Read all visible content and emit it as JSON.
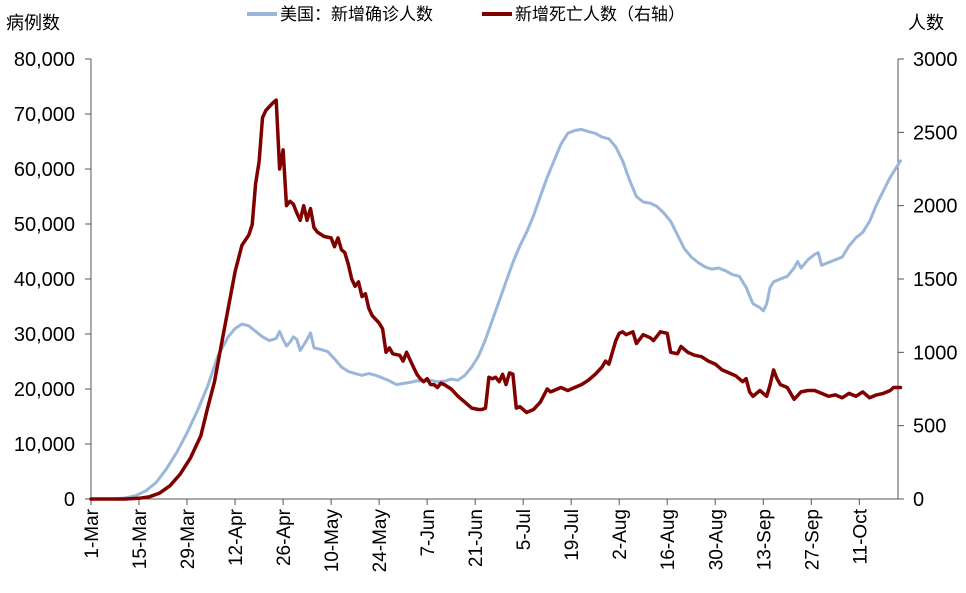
{
  "chart_data": {
    "type": "line",
    "left_unit": "病例数",
    "right_unit": "人数",
    "legend": {
      "position": "top",
      "items": [
        {
          "label": "美国：新增确诊人数",
          "color": "#9AB7DA"
        },
        {
          "label": "新增死亡人数（右轴）",
          "color": "#800000"
        }
      ]
    },
    "x_ticks": [
      "1-Mar",
      "15-Mar",
      "29-Mar",
      "12-Apr",
      "26-Apr",
      "10-May",
      "24-May",
      "7-Jun",
      "21-Jun",
      "5-Jul",
      "19-Jul",
      "2-Aug",
      "16-Aug",
      "30-Aug",
      "13-Sep",
      "27-Sep",
      "11-Oct"
    ],
    "y_left": {
      "min": 0,
      "max": 80000,
      "step": 10000,
      "tick_labels": [
        "0",
        "10,000",
        "20,000",
        "30,000",
        "40,000",
        "50,000",
        "60,000",
        "70,000",
        "80,000"
      ]
    },
    "y_right": {
      "min": 0,
      "max": 3000,
      "step": 500,
      "tick_labels": [
        "0",
        "500",
        "1000",
        "1500",
        "2000",
        "2500",
        "3000"
      ]
    },
    "series": [
      {
        "name": "美国：新增确诊人数",
        "axis": "left",
        "color": "#9AB7DA",
        "points": [
          [
            0,
            0
          ],
          [
            7,
            0
          ],
          [
            10,
            200
          ],
          [
            13,
            600
          ],
          [
            16,
            1500
          ],
          [
            19,
            3000
          ],
          [
            22,
            5500
          ],
          [
            25,
            8500
          ],
          [
            28,
            12000
          ],
          [
            31,
            16000
          ],
          [
            34,
            20500
          ],
          [
            37,
            26000
          ],
          [
            40,
            29500
          ],
          [
            42,
            31000
          ],
          [
            44,
            31800
          ],
          [
            46,
            31500
          ],
          [
            48,
            30500
          ],
          [
            50,
            29500
          ],
          [
            52,
            28800
          ],
          [
            54,
            29200
          ],
          [
            55,
            30500
          ],
          [
            56,
            29000
          ],
          [
            57,
            27800
          ],
          [
            58,
            28500
          ],
          [
            59,
            29500
          ],
          [
            60,
            29000
          ],
          [
            61,
            27000
          ],
          [
            62,
            28000
          ],
          [
            63,
            29000
          ],
          [
            64,
            30200
          ],
          [
            65,
            27500
          ],
          [
            67,
            27200
          ],
          [
            69,
            26800
          ],
          [
            71,
            25500
          ],
          [
            73,
            24000
          ],
          [
            75,
            23200
          ],
          [
            77,
            22800
          ],
          [
            79,
            22500
          ],
          [
            81,
            22800
          ],
          [
            83,
            22500
          ],
          [
            85,
            22000
          ],
          [
            87,
            21500
          ],
          [
            89,
            20800
          ],
          [
            91,
            21000
          ],
          [
            93,
            21200
          ],
          [
            95,
            21500
          ],
          [
            97,
            21400
          ],
          [
            99,
            21600
          ],
          [
            101,
            21300
          ],
          [
            103,
            21400
          ],
          [
            105,
            21800
          ],
          [
            107,
            21600
          ],
          [
            109,
            22500
          ],
          [
            111,
            24000
          ],
          [
            113,
            26000
          ],
          [
            115,
            29000
          ],
          [
            117,
            32500
          ],
          [
            119,
            36000
          ],
          [
            121,
            39500
          ],
          [
            123,
            43000
          ],
          [
            125,
            46000
          ],
          [
            127,
            48500
          ],
          [
            129,
            51500
          ],
          [
            131,
            55000
          ],
          [
            133,
            58500
          ],
          [
            135,
            61500
          ],
          [
            137,
            64500
          ],
          [
            139,
            66500
          ],
          [
            141,
            67000
          ],
          [
            143,
            67200
          ],
          [
            145,
            66800
          ],
          [
            147,
            66500
          ],
          [
            149,
            65800
          ],
          [
            151,
            65500
          ],
          [
            153,
            64000
          ],
          [
            155,
            61500
          ],
          [
            157,
            58000
          ],
          [
            159,
            55000
          ],
          [
            161,
            54000
          ],
          [
            163,
            53800
          ],
          [
            165,
            53200
          ],
          [
            167,
            52000
          ],
          [
            169,
            50500
          ],
          [
            171,
            48000
          ],
          [
            173,
            45500
          ],
          [
            175,
            44000
          ],
          [
            177,
            43000
          ],
          [
            179,
            42200
          ],
          [
            181,
            41800
          ],
          [
            183,
            42000
          ],
          [
            185,
            41500
          ],
          [
            187,
            40800
          ],
          [
            189,
            40500
          ],
          [
            191,
            38500
          ],
          [
            193,
            35500
          ],
          [
            195,
            34800
          ],
          [
            196,
            34200
          ],
          [
            197,
            35500
          ],
          [
            198,
            38500
          ],
          [
            199,
            39500
          ],
          [
            201,
            40000
          ],
          [
            203,
            40500
          ],
          [
            205,
            42000
          ],
          [
            206,
            43200
          ],
          [
            207,
            42000
          ],
          [
            209,
            43500
          ],
          [
            211,
            44500
          ],
          [
            212,
            44800
          ],
          [
            213,
            42500
          ],
          [
            215,
            43000
          ],
          [
            217,
            43500
          ],
          [
            219,
            44000
          ],
          [
            221,
            46000
          ],
          [
            223,
            47500
          ],
          [
            225,
            48500
          ],
          [
            227,
            50500
          ],
          [
            229,
            53500
          ],
          [
            231,
            56000
          ],
          [
            233,
            58500
          ],
          [
            235,
            60500
          ],
          [
            236,
            61500
          ]
        ]
      },
      {
        "name": "新增死亡人数（右轴）",
        "axis": "right",
        "color": "#800000",
        "points": [
          [
            0,
            0
          ],
          [
            10,
            0
          ],
          [
            14,
            5
          ],
          [
            17,
            15
          ],
          [
            20,
            40
          ],
          [
            23,
            90
          ],
          [
            26,
            170
          ],
          [
            29,
            280
          ],
          [
            32,
            430
          ],
          [
            34,
            620
          ],
          [
            36,
            800
          ],
          [
            38,
            1050
          ],
          [
            40,
            1300
          ],
          [
            42,
            1550
          ],
          [
            44,
            1730
          ],
          [
            46,
            1800
          ],
          [
            47,
            1870
          ],
          [
            48,
            2150
          ],
          [
            49,
            2300
          ],
          [
            50,
            2600
          ],
          [
            51,
            2650
          ],
          [
            53,
            2700
          ],
          [
            54,
            2720
          ],
          [
            55,
            2250
          ],
          [
            56,
            2380
          ],
          [
            57,
            2000
          ],
          [
            58,
            2030
          ],
          [
            59,
            2010
          ],
          [
            60,
            1950
          ],
          [
            61,
            1900
          ],
          [
            62,
            2000
          ],
          [
            63,
            1900
          ],
          [
            64,
            1980
          ],
          [
            65,
            1850
          ],
          [
            66,
            1820
          ],
          [
            68,
            1790
          ],
          [
            70,
            1780
          ],
          [
            71,
            1720
          ],
          [
            72,
            1780
          ],
          [
            73,
            1700
          ],
          [
            74,
            1680
          ],
          [
            75,
            1600
          ],
          [
            76,
            1500
          ],
          [
            77,
            1450
          ],
          [
            78,
            1480
          ],
          [
            79,
            1380
          ],
          [
            80,
            1400
          ],
          [
            81,
            1300
          ],
          [
            82,
            1250
          ],
          [
            84,
            1200
          ],
          [
            85,
            1160
          ],
          [
            86,
            1000
          ],
          [
            87,
            1030
          ],
          [
            88,
            990
          ],
          [
            90,
            980
          ],
          [
            91,
            940
          ],
          [
            92,
            1000
          ],
          [
            93,
            950
          ],
          [
            94,
            900
          ],
          [
            95,
            850
          ],
          [
            96,
            820
          ],
          [
            97,
            800
          ],
          [
            98,
            820
          ],
          [
            99,
            780
          ],
          [
            100,
            780
          ],
          [
            101,
            760
          ],
          [
            102,
            790
          ],
          [
            103,
            780
          ],
          [
            105,
            750
          ],
          [
            107,
            700
          ],
          [
            109,
            660
          ],
          [
            111,
            620
          ],
          [
            113,
            610
          ],
          [
            114,
            610
          ],
          [
            115,
            620
          ],
          [
            116,
            830
          ],
          [
            117,
            820
          ],
          [
            118,
            830
          ],
          [
            119,
            800
          ],
          [
            120,
            850
          ],
          [
            121,
            780
          ],
          [
            122,
            860
          ],
          [
            123,
            850
          ],
          [
            124,
            620
          ],
          [
            125,
            630
          ],
          [
            127,
            590
          ],
          [
            129,
            610
          ],
          [
            131,
            660
          ],
          [
            133,
            750
          ],
          [
            134,
            730
          ],
          [
            135,
            740
          ],
          [
            137,
            760
          ],
          [
            139,
            740
          ],
          [
            141,
            760
          ],
          [
            143,
            780
          ],
          [
            145,
            810
          ],
          [
            147,
            850
          ],
          [
            149,
            900
          ],
          [
            150,
            940
          ],
          [
            151,
            920
          ],
          [
            152,
            1000
          ],
          [
            153,
            1080
          ],
          [
            154,
            1130
          ],
          [
            155,
            1140
          ],
          [
            156,
            1120
          ],
          [
            158,
            1140
          ],
          [
            159,
            1060
          ],
          [
            161,
            1120
          ],
          [
            163,
            1100
          ],
          [
            164,
            1080
          ],
          [
            166,
            1140
          ],
          [
            168,
            1130
          ],
          [
            169,
            1000
          ],
          [
            171,
            990
          ],
          [
            172,
            1040
          ],
          [
            174,
            1000
          ],
          [
            176,
            980
          ],
          [
            178,
            970
          ],
          [
            180,
            940
          ],
          [
            182,
            920
          ],
          [
            184,
            880
          ],
          [
            186,
            860
          ],
          [
            188,
            840
          ],
          [
            190,
            800
          ],
          [
            191,
            820
          ],
          [
            192,
            730
          ],
          [
            193,
            700
          ],
          [
            195,
            740
          ],
          [
            197,
            700
          ],
          [
            198,
            780
          ],
          [
            199,
            880
          ],
          [
            200,
            820
          ],
          [
            201,
            780
          ],
          [
            203,
            760
          ],
          [
            204,
            720
          ],
          [
            205,
            680
          ],
          [
            207,
            730
          ],
          [
            209,
            740
          ],
          [
            211,
            740
          ],
          [
            213,
            720
          ],
          [
            215,
            700
          ],
          [
            217,
            710
          ],
          [
            219,
            690
          ],
          [
            221,
            720
          ],
          [
            223,
            700
          ],
          [
            225,
            730
          ],
          [
            227,
            690
          ],
          [
            229,
            710
          ],
          [
            231,
            720
          ],
          [
            233,
            740
          ],
          [
            234,
            760
          ],
          [
            236,
            760
          ]
        ]
      }
    ]
  }
}
